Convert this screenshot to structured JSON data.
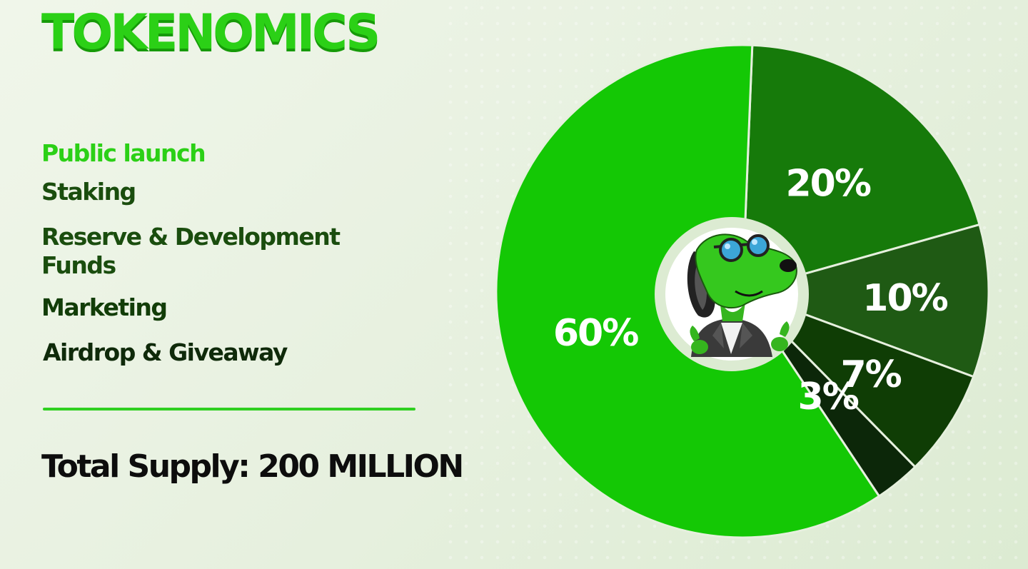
{
  "title": "TOKENOMICS",
  "legend": [
    {
      "label": "Public launch",
      "color": "#2bd016"
    },
    {
      "label": "Staking",
      "color": "#1a4d0e"
    },
    {
      "label": "Reserve & Development Funds",
      "color": "#1a4d0e"
    },
    {
      "label": "Marketing",
      "color": "#123d08"
    },
    {
      "label": "Airdrop & Giveaway",
      "color": "#0f2a0a"
    }
  ],
  "total_supply": "Total Supply: 200 MILLION",
  "chart_data": {
    "type": "pie",
    "title": "",
    "slices": [
      {
        "label": "20%",
        "value": 20,
        "color": "#167a0a"
      },
      {
        "label": "10%",
        "value": 10,
        "color": "#1f5a14"
      },
      {
        "label": "7%",
        "value": 7,
        "color": "#0f3d05"
      },
      {
        "label": "3%",
        "value": 3,
        "color": "#0c2709"
      },
      {
        "label": "60%",
        "value": 60,
        "color": "#14c805"
      }
    ],
    "center_icon": "dog-mascot-with-sunglasses"
  }
}
